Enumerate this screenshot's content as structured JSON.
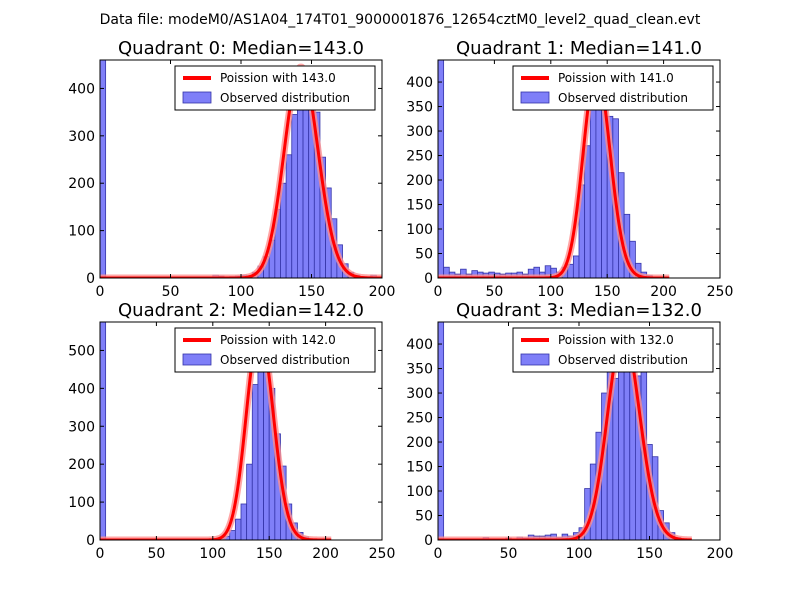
{
  "figure": {
    "suptitle": "Data file: modeM0/AS1A04_174T01_9000001876_12654cztM0_level2_quad_clean.evt"
  },
  "colors": {
    "hist_fill": "#7f7ff8",
    "hist_edge": "#3434a8",
    "curve": "#ff0000",
    "curve_glow": "#ff9090"
  },
  "chart_data": [
    {
      "type": "bar",
      "title": "Quadrant 0: Median=143.0",
      "median": 143.0,
      "legend": {
        "line": "Poission with 143.0",
        "hist": "Observed distribution",
        "position": "top-right"
      },
      "xlim": [
        0,
        200
      ],
      "ylim": [
        0,
        460
      ],
      "xticks": [
        0,
        50,
        100,
        150,
        200
      ],
      "yticks": [
        0,
        100,
        200,
        300,
        400
      ],
      "bin_width": 4,
      "bins": [
        {
          "x": 0,
          "y": 460
        },
        {
          "x": 80,
          "y": 6
        },
        {
          "x": 84,
          "y": 4
        },
        {
          "x": 92,
          "y": 3
        },
        {
          "x": 96,
          "y": 4
        },
        {
          "x": 100,
          "y": 6
        },
        {
          "x": 104,
          "y": 5
        },
        {
          "x": 108,
          "y": 12
        },
        {
          "x": 112,
          "y": 25
        },
        {
          "x": 116,
          "y": 45
        },
        {
          "x": 120,
          "y": 80
        },
        {
          "x": 124,
          "y": 145
        },
        {
          "x": 128,
          "y": 200
        },
        {
          "x": 132,
          "y": 260
        },
        {
          "x": 136,
          "y": 345
        },
        {
          "x": 140,
          "y": 400
        },
        {
          "x": 144,
          "y": 440
        },
        {
          "x": 148,
          "y": 405
        },
        {
          "x": 152,
          "y": 350
        },
        {
          "x": 156,
          "y": 255
        },
        {
          "x": 160,
          "y": 190
        },
        {
          "x": 164,
          "y": 125
        },
        {
          "x": 168,
          "y": 70
        },
        {
          "x": 172,
          "y": 30
        },
        {
          "x": 176,
          "y": 12
        },
        {
          "x": 180,
          "y": 6
        },
        {
          "x": 184,
          "y": 3
        },
        {
          "x": 188,
          "y": 2
        },
        {
          "x": 192,
          "y": 6
        }
      ],
      "curve": {
        "mean": 143.0,
        "peak": 445,
        "x_start": 0,
        "x_end": 200
      }
    },
    {
      "type": "bar",
      "title": "Quadrant 1: Median=141.0",
      "median": 141.0,
      "legend": {
        "line": "Poission with 141.0",
        "hist": "Observed distribution",
        "position": "top-right"
      },
      "xlim": [
        0,
        250
      ],
      "ylim": [
        0,
        445
      ],
      "xticks": [
        0,
        50,
        100,
        150,
        200,
        250
      ],
      "yticks": [
        0,
        50,
        100,
        150,
        200,
        250,
        300,
        350,
        400
      ],
      "bin_width": 5,
      "bins": [
        {
          "x": 0,
          "y": 445
        },
        {
          "x": 5,
          "y": 22
        },
        {
          "x": 10,
          "y": 12
        },
        {
          "x": 15,
          "y": 8
        },
        {
          "x": 20,
          "y": 18
        },
        {
          "x": 25,
          "y": 8
        },
        {
          "x": 30,
          "y": 15
        },
        {
          "x": 35,
          "y": 12
        },
        {
          "x": 40,
          "y": 10
        },
        {
          "x": 45,
          "y": 12
        },
        {
          "x": 50,
          "y": 10
        },
        {
          "x": 55,
          "y": 8
        },
        {
          "x": 60,
          "y": 10
        },
        {
          "x": 65,
          "y": 10
        },
        {
          "x": 70,
          "y": 12
        },
        {
          "x": 75,
          "y": 8
        },
        {
          "x": 80,
          "y": 18
        },
        {
          "x": 85,
          "y": 22
        },
        {
          "x": 90,
          "y": 12
        },
        {
          "x": 95,
          "y": 25
        },
        {
          "x": 100,
          "y": 20
        },
        {
          "x": 105,
          "y": 12
        },
        {
          "x": 110,
          "y": 22
        },
        {
          "x": 115,
          "y": 28
        },
        {
          "x": 120,
          "y": 45
        },
        {
          "x": 125,
          "y": 190
        },
        {
          "x": 130,
          "y": 270
        },
        {
          "x": 135,
          "y": 350
        },
        {
          "x": 140,
          "y": 420
        },
        {
          "x": 145,
          "y": 395
        },
        {
          "x": 150,
          "y": 330
        },
        {
          "x": 155,
          "y": 325
        },
        {
          "x": 160,
          "y": 215
        },
        {
          "x": 165,
          "y": 130
        },
        {
          "x": 170,
          "y": 75
        },
        {
          "x": 175,
          "y": 30
        },
        {
          "x": 180,
          "y": 12
        },
        {
          "x": 185,
          "y": 5
        },
        {
          "x": 190,
          "y": 2
        },
        {
          "x": 195,
          "y": 1
        }
      ],
      "curve": {
        "mean": 141.0,
        "peak": 425,
        "x_start": 0,
        "x_end": 205
      }
    },
    {
      "type": "bar",
      "title": "Quadrant 2: Median=142.0",
      "median": 142.0,
      "legend": {
        "line": "Poission with 142.0",
        "hist": "Observed distribution",
        "position": "top-right"
      },
      "xlim": [
        0,
        250
      ],
      "ylim": [
        0,
        575
      ],
      "xticks": [
        0,
        50,
        100,
        150,
        200,
        250
      ],
      "yticks": [
        0,
        100,
        200,
        300,
        400,
        500
      ],
      "bin_width": 5,
      "bins": [
        {
          "x": 0,
          "y": 575
        },
        {
          "x": 80,
          "y": 3
        },
        {
          "x": 90,
          "y": 2
        },
        {
          "x": 95,
          "y": 3
        },
        {
          "x": 100,
          "y": 4
        },
        {
          "x": 105,
          "y": 6
        },
        {
          "x": 110,
          "y": 10
        },
        {
          "x": 115,
          "y": 25
        },
        {
          "x": 120,
          "y": 55
        },
        {
          "x": 125,
          "y": 95
        },
        {
          "x": 130,
          "y": 200
        },
        {
          "x": 135,
          "y": 410
        },
        {
          "x": 140,
          "y": 540
        },
        {
          "x": 145,
          "y": 500
        },
        {
          "x": 150,
          "y": 400
        },
        {
          "x": 155,
          "y": 280
        },
        {
          "x": 160,
          "y": 195
        },
        {
          "x": 165,
          "y": 95
        },
        {
          "x": 170,
          "y": 45
        },
        {
          "x": 175,
          "y": 20
        },
        {
          "x": 180,
          "y": 8
        },
        {
          "x": 185,
          "y": 3
        }
      ],
      "curve": {
        "mean": 142.0,
        "peak": 550,
        "x_start": 0,
        "x_end": 205
      }
    },
    {
      "type": "bar",
      "title": "Quadrant 3: Median=132.0",
      "median": 132.0,
      "legend": {
        "line": "Poission with 132.0",
        "hist": "Observed distribution",
        "position": "top-right"
      },
      "xlim": [
        0,
        200
      ],
      "ylim": [
        0,
        445
      ],
      "xticks": [
        0,
        50,
        100,
        150,
        200
      ],
      "yticks": [
        0,
        50,
        100,
        150,
        200,
        250,
        300,
        350,
        400
      ],
      "bin_width": 4,
      "bins": [
        {
          "x": 0,
          "y": 445
        },
        {
          "x": 32,
          "y": 5
        },
        {
          "x": 48,
          "y": 4
        },
        {
          "x": 56,
          "y": 6
        },
        {
          "x": 60,
          "y": 4
        },
        {
          "x": 64,
          "y": 10
        },
        {
          "x": 68,
          "y": 8
        },
        {
          "x": 72,
          "y": 8
        },
        {
          "x": 76,
          "y": 10
        },
        {
          "x": 80,
          "y": 12
        },
        {
          "x": 84,
          "y": 5
        },
        {
          "x": 88,
          "y": 12
        },
        {
          "x": 92,
          "y": 8
        },
        {
          "x": 96,
          "y": 15
        },
        {
          "x": 100,
          "y": 25
        },
        {
          "x": 104,
          "y": 105
        },
        {
          "x": 108,
          "y": 155
        },
        {
          "x": 112,
          "y": 220
        },
        {
          "x": 116,
          "y": 300
        },
        {
          "x": 120,
          "y": 400
        },
        {
          "x": 124,
          "y": 330
        },
        {
          "x": 128,
          "y": 400
        },
        {
          "x": 132,
          "y": 420
        },
        {
          "x": 136,
          "y": 360
        },
        {
          "x": 140,
          "y": 335
        },
        {
          "x": 144,
          "y": 380
        },
        {
          "x": 148,
          "y": 195
        },
        {
          "x": 152,
          "y": 170
        },
        {
          "x": 156,
          "y": 60
        },
        {
          "x": 160,
          "y": 35
        },
        {
          "x": 164,
          "y": 15
        },
        {
          "x": 168,
          "y": 5
        }
      ],
      "curve": {
        "mean": 132.0,
        "peak": 420,
        "x_start": 0,
        "x_end": 180
      }
    }
  ]
}
